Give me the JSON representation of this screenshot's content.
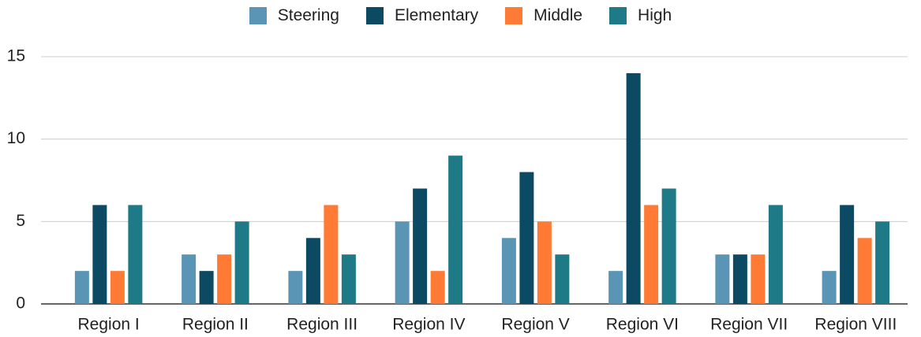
{
  "chart_data": {
    "type": "bar",
    "categories": [
      "Region I",
      "Region II",
      "Region III",
      "Region IV",
      "Region V",
      "Region VI",
      "Region VII",
      "Region VIII"
    ],
    "series": [
      {
        "name": "Steering",
        "color": "#5b95b5",
        "values": [
          2,
          3,
          2,
          5,
          4,
          2,
          3,
          2
        ]
      },
      {
        "name": "Elementary",
        "color": "#0c4a63",
        "values": [
          6,
          2,
          4,
          7,
          8,
          14,
          3,
          6
        ]
      },
      {
        "name": "Middle",
        "color": "#ff7b35",
        "values": [
          2,
          3,
          6,
          2,
          5,
          6,
          3,
          4
        ]
      },
      {
        "name": "High",
        "color": "#1e7a87",
        "values": [
          6,
          5,
          3,
          9,
          3,
          7,
          6,
          5
        ]
      }
    ],
    "ylim": [
      0,
      15
    ],
    "yticks": [
      0,
      5,
      10,
      15
    ],
    "grid": true,
    "legend": "top"
  }
}
